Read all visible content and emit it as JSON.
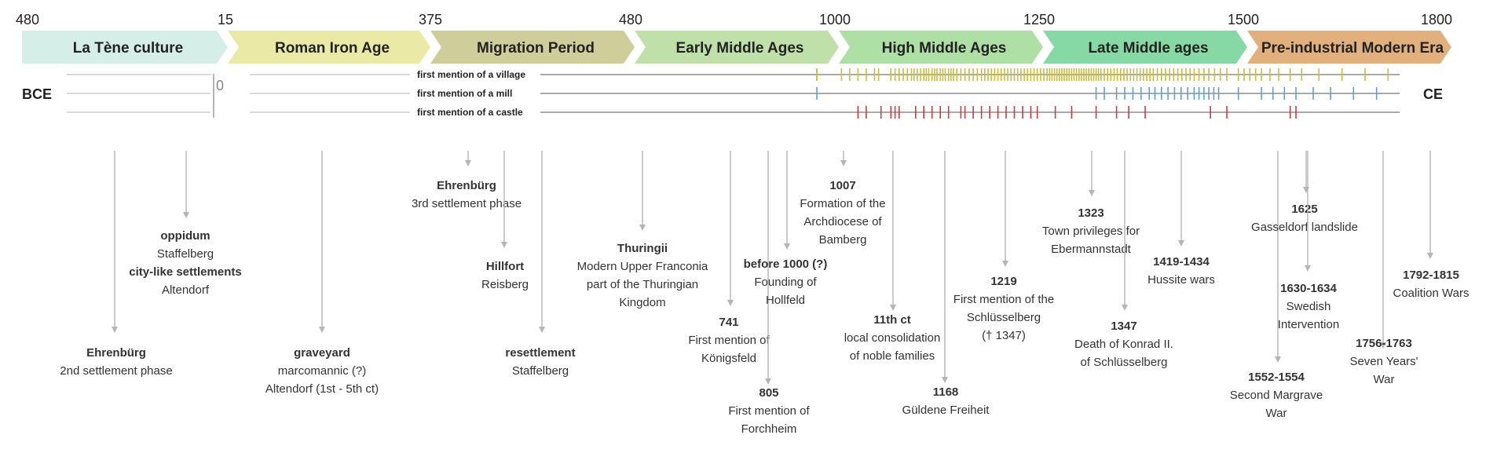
{
  "scale_ticks": [
    "480",
    "15",
    "375",
    "480",
    "1000",
    "1250",
    "1500",
    "1800"
  ],
  "bce_label": "BCE",
  "ce_label": "CE",
  "zero_label": "0",
  "eras": [
    {
      "label": "La Tène culture",
      "color": "#d6eee8"
    },
    {
      "label": "Roman Iron Age",
      "color": "#eaeaa6"
    },
    {
      "label": "Migration Period",
      "color": "#cfcd99"
    },
    {
      "label": "Early Middle Ages",
      "color": "#bfe0a8"
    },
    {
      "label": "High Middle Ages",
      "color": "#aee0a6"
    },
    {
      "label": "Late Middle ages",
      "color": "#86d9a4"
    },
    {
      "label": "Pre-industrial Modern Era",
      "color": "#e2b07c"
    }
  ],
  "rows": [
    {
      "label": "first mention of a village",
      "color": "#c9bd3a",
      "years": [
        1000,
        1000,
        1030,
        1040,
        1050,
        1060,
        1070,
        1075,
        1090,
        1095,
        1100,
        1105,
        1110,
        1115,
        1118,
        1122,
        1126,
        1130,
        1133,
        1136,
        1140,
        1143,
        1146,
        1150,
        1153,
        1156,
        1160,
        1163,
        1166,
        1170,
        1175,
        1180,
        1185,
        1190,
        1195,
        1200,
        1204,
        1208,
        1212,
        1216,
        1220,
        1224,
        1228,
        1232,
        1236,
        1240,
        1244,
        1248,
        1252,
        1256,
        1260,
        1264,
        1268,
        1272,
        1276,
        1280,
        1283,
        1286,
        1289,
        1292,
        1295,
        1298,
        1301,
        1304,
        1307,
        1310,
        1313,
        1316,
        1319,
        1322,
        1325,
        1328,
        1331,
        1334,
        1337,
        1340,
        1343,
        1346,
        1350,
        1354,
        1358,
        1362,
        1366,
        1370,
        1374,
        1378,
        1382,
        1386,
        1390,
        1394,
        1398,
        1402,
        1406,
        1410,
        1415,
        1420,
        1425,
        1430,
        1435,
        1440,
        1445,
        1450,
        1455,
        1460,
        1466,
        1472,
        1478,
        1485,
        1492,
        1500,
        1520,
        1530,
        1540,
        1550,
        1560,
        1575,
        1590,
        1610,
        1630,
        1660,
        1700,
        1740,
        1780
      ]
    },
    {
      "label": "first mention of a mill",
      "color": "#5fa0d8",
      "years": [
        990,
        1340,
        1350,
        1365,
        1375,
        1385,
        1395,
        1405,
        1412,
        1420,
        1428,
        1436,
        1444,
        1452,
        1460,
        1466,
        1472,
        1478,
        1484,
        1490,
        1520,
        1560,
        1580,
        1600,
        1620,
        1650,
        1680,
        1720,
        1760
      ]
    },
    {
      "label": "first mention of a castle",
      "color": "#cc3d3d",
      "years": [
        1050,
        1060,
        1078,
        1090,
        1095,
        1100,
        1120,
        1130,
        1140,
        1150,
        1160,
        1175,
        1180,
        1190,
        1200,
        1210,
        1220,
        1230,
        1240,
        1250,
        1260,
        1268,
        1290,
        1310,
        1340,
        1365,
        1380,
        1400,
        1480,
        1500,
        1610,
        1620
      ]
    }
  ],
  "events": [
    {
      "title": "Ehrenbürg",
      "subtitle": "2nd settlement phase"
    },
    {
      "title": "oppidum",
      "subtitle": "Staffelberg",
      "title2": "city-like settlements",
      "subtitle2": "Altendorf"
    },
    {
      "title": "graveyard",
      "subtitle": "marcomannic (?)",
      "subtitle2": "Altendorf (1st - 5th ct)"
    },
    {
      "title": "Ehrenbürg",
      "subtitle": "3rd settlement phase"
    },
    {
      "title": "Hillfort",
      "subtitle": "Reisberg"
    },
    {
      "title": "resettlement",
      "subtitle": "Staffelberg"
    },
    {
      "title": "Thuringii",
      "subtitle": "Modern Upper Franconia",
      "subtitle2": "part of the Thuringian",
      "subtitle3": "Kingdom"
    },
    {
      "title": "741",
      "subtitle": "First mention of",
      "subtitle2": "Königsfeld"
    },
    {
      "title": "805",
      "subtitle": "First mention of",
      "subtitle2": "Forchheim"
    },
    {
      "title": "before 1000 (?)",
      "subtitle": "Founding of",
      "subtitle2": "Hollfeld"
    },
    {
      "title": "1007",
      "subtitle": "Formation of the",
      "subtitle2": "Archdiocese of",
      "subtitle3": "Bamberg"
    },
    {
      "title": "11th ct",
      "subtitle": "local consolidation",
      "subtitle2": "of noble families"
    },
    {
      "title": "1168",
      "subtitle": "Güldene Freiheit"
    },
    {
      "title": "1219",
      "subtitle": "First mention of the",
      "subtitle2": "Schlüsselberg",
      "subtitle3": "(† 1347)"
    },
    {
      "title": "1323",
      "subtitle": "Town privileges for",
      "subtitle2": "Ebermannstadt"
    },
    {
      "title": "1347",
      "subtitle": "Death of Konrad II.",
      "subtitle2": "of Schlüsselberg"
    },
    {
      "title": "1419-1434",
      "subtitle": "Hussite wars"
    },
    {
      "title": "1552-1554",
      "subtitle": "Second Margrave",
      "subtitle2": "War"
    },
    {
      "title": "1625",
      "subtitle": "Gasseldorf landslide"
    },
    {
      "title": "1630-1634",
      "subtitle": "Swedish",
      "subtitle2": "Intervention"
    },
    {
      "title": "1756-1763",
      "subtitle": "Seven Years'",
      "subtitle2": "War"
    },
    {
      "title": "1792-1815",
      "subtitle": "Coalition Wars"
    }
  ]
}
